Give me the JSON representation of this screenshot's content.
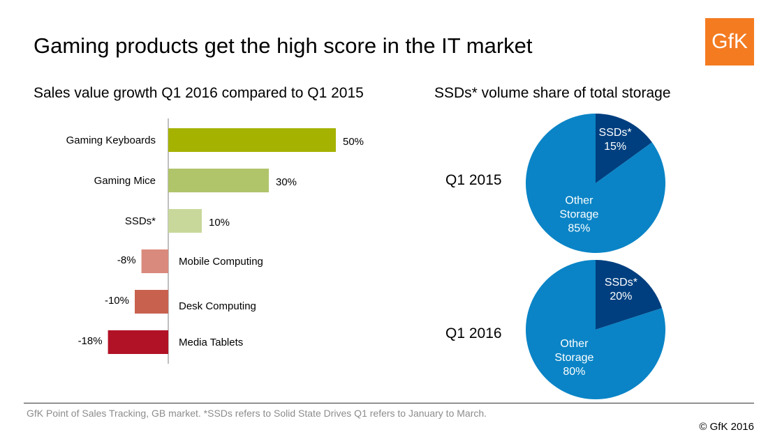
{
  "title": "Gaming products get the high score in the IT market",
  "logo_text": "GfK",
  "logo_color": "#f47b20",
  "bar_subtitle": "Sales value growth Q1 2016 compared to Q1 2015",
  "pie_subtitle": "SSDs*  volume share of total storage",
  "chart_data": [
    {
      "type": "bar",
      "orientation": "horizontal",
      "title": "Sales value growth Q1 2016 compared to Q1 2015",
      "categories": [
        "Gaming Keyboards",
        "Gaming Mice",
        "SSDs*",
        "Mobile Computing",
        "Desk Computing",
        "Media Tablets"
      ],
      "values": [
        50,
        30,
        10,
        -8,
        -10,
        -18
      ],
      "value_labels": [
        "50%",
        "30%",
        "10%",
        "-8%",
        "-10%",
        "-18%"
      ],
      "colors": [
        "#a5b200",
        "#b0c46a",
        "#c8d89a",
        "#d98a7c",
        "#c8624f",
        "#b11226"
      ],
      "xlim": [
        -20,
        60
      ],
      "grid": false
    },
    {
      "type": "pie",
      "title": "Q1 2015",
      "labels": [
        "SSDs*",
        "Other Storage"
      ],
      "values": [
        15,
        85
      ],
      "value_labels": [
        "15%",
        "85%"
      ],
      "colors": [
        "#003f7f",
        "#0a84c6"
      ]
    },
    {
      "type": "pie",
      "title": "Q1 2016",
      "labels": [
        "SSDs*",
        "Other Storage"
      ],
      "values": [
        20,
        80
      ],
      "value_labels": [
        "20%",
        "80%"
      ],
      "colors": [
        "#003f7f",
        "#0a84c6"
      ]
    }
  ],
  "source": "GfK Point of Sales Tracking, GB market. *SSDs refers to Solid State Drives Q1 refers to January to March.",
  "copyright": "© GfK 2016"
}
